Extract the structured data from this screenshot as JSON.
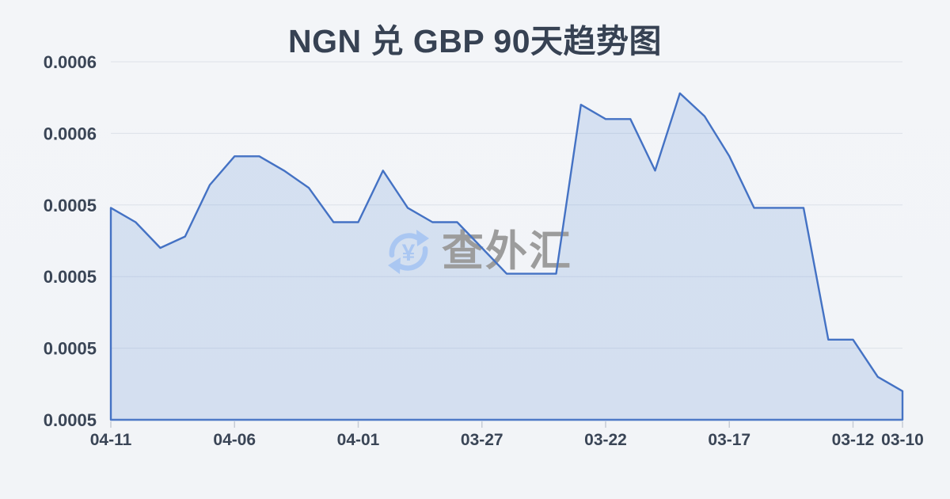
{
  "page": {
    "title": "NGN 兑 GBP 90天趋势图"
  },
  "watermark": {
    "icon": "currency-exchange-icon",
    "symbol": "¥",
    "text": "查外汇",
    "icon_color": "#aac7f2",
    "text_color": "#9c9c9c"
  },
  "chart_data": {
    "type": "area",
    "title": "NGN 兑 GBP 90天趋势图",
    "x": [
      "04-11",
      "04-10",
      "04-09",
      "04-08",
      "04-07",
      "04-06",
      "04-05",
      "04-04",
      "04-03",
      "04-02",
      "04-01",
      "03-31",
      "03-30",
      "03-29",
      "03-28",
      "03-27",
      "03-26",
      "03-25",
      "03-24",
      "03-23",
      "03-22",
      "03-21",
      "03-20",
      "03-19",
      "03-18",
      "03-17",
      "03-16",
      "03-15",
      "03-14",
      "03-13",
      "03-12",
      "03-11",
      "03-10"
    ],
    "values": [
      0.000574,
      0.000569,
      0.00056,
      0.000564,
      0.000582,
      0.000592,
      0.000592,
      0.000587,
      0.000581,
      0.000569,
      0.000569,
      0.000587,
      0.000574,
      0.000569,
      0.000569,
      0.00056,
      0.000551,
      0.000551,
      0.000551,
      0.00061,
      0.000605,
      0.000605,
      0.000587,
      0.000614,
      0.000606,
      0.000592,
      0.000574,
      0.000574,
      0.000574,
      0.000528,
      0.000528,
      0.000515,
      0.00051
    ],
    "xlabel": "",
    "ylabel": "",
    "x_tick_labels": [
      "04-11",
      "04-06",
      "04-01",
      "03-27",
      "03-22",
      "03-17",
      "03-12",
      "03-10"
    ],
    "x_tick_indices": [
      0,
      5,
      10,
      15,
      20,
      25,
      30,
      32
    ],
    "y_tick_labels_top_to_bottom": [
      "0.0006",
      "0.0006",
      "0.0005",
      "0.0005",
      "0.0005",
      "0.0005"
    ],
    "ylim": [
      0.0005,
      0.000625
    ],
    "grid": true,
    "legend": "none",
    "line_color": "#4472c4",
    "fill_color": "rgba(97,141,217,0.20)",
    "axis_color": "#4e79c7",
    "gridline_color": "rgba(158,170,190,0.26)",
    "tick_mark_color": "#c6ccd6",
    "tick_text_color": "#3a4556"
  }
}
